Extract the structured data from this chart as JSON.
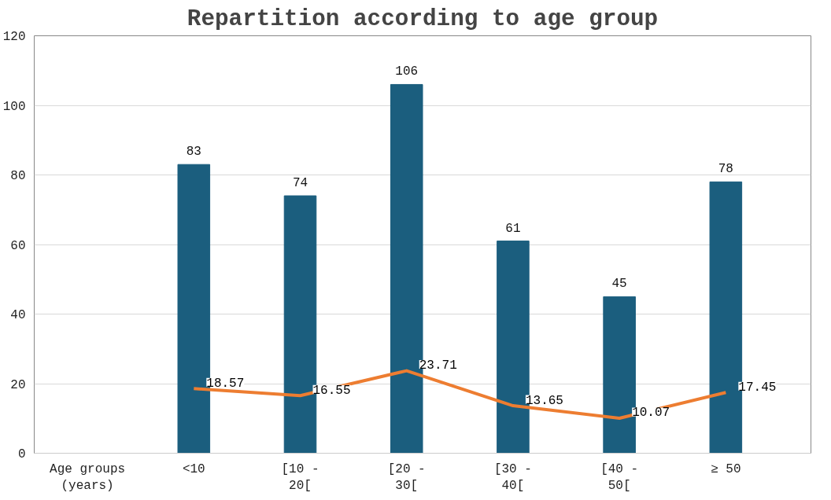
{
  "chart_data": {
    "type": "bar",
    "title": "Repartition according to age group",
    "categories": [
      "Age groups (years)",
      "<10",
      "[10 - 20[",
      "[20 - 30[",
      "[30 - 40[",
      "[40 - 50[",
      "≥ 50"
    ],
    "series": [
      {
        "color": "#1b5e7e",
        "values": [
          null,
          83,
          74,
          106,
          61,
          45,
          78
        ]
      },
      {
        "type": "line",
        "color": "#ed7d31",
        "values": [
          null,
          18.57,
          16.55,
          23.71,
          13.65,
          10.07,
          17.45
        ]
      }
    ],
    "ylim": [
      0,
      120
    ],
    "yticks": [
      0,
      20,
      40,
      60,
      80,
      100,
      120
    ],
    "grid": "y",
    "data_labels": true,
    "marker": "none",
    "line_style": "solid"
  }
}
